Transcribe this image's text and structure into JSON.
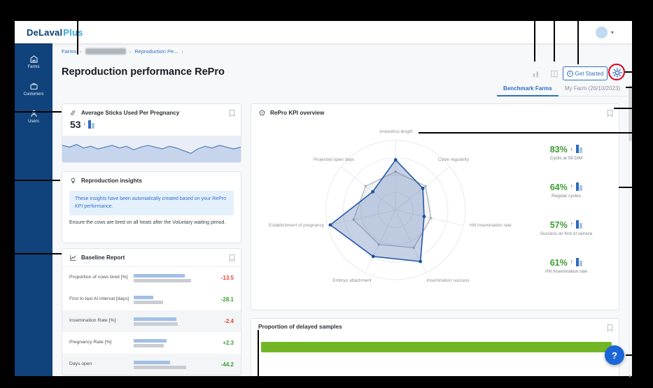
{
  "header": {
    "logo_primary": "DeLaval",
    "logo_secondary": "Plus"
  },
  "sidebar": {
    "items": [
      {
        "label": "Farms"
      },
      {
        "label": "Customers"
      },
      {
        "label": "Users"
      }
    ]
  },
  "breadcrumb": {
    "farms": "Farms",
    "current": "Reproduction Pe...",
    "separator": "›"
  },
  "page": {
    "title": "Reproduction performance RePro",
    "get_started_label": "Get Started",
    "tabs": [
      {
        "label": "Benchmark Farms",
        "active": true
      },
      {
        "label": "My Farm (26/10/2023)",
        "active": false
      }
    ]
  },
  "cards": {
    "avg_sticks": {
      "title": "Average Sticks Used Per Pregnancy",
      "value": "53",
      "trend_arrow": "↓",
      "sparkline": [
        11,
        13,
        10,
        14,
        12,
        15,
        13,
        11,
        14,
        12,
        16,
        13,
        11,
        13,
        15,
        12,
        14,
        17,
        20,
        15,
        12,
        14,
        11,
        13,
        15,
        13
      ]
    },
    "insights": {
      "title": "Reproduction insights",
      "info_text": "These insights have been automatically created based on your RePro KPI performance.",
      "body_text": "Ensure the cows are bred on all heats after the Voluntary waiting period."
    },
    "baseline": {
      "title": "Baseline Report",
      "rows": [
        {
          "label": "Proportion of cows bred [%]",
          "value": "-13.5",
          "direction": "negative",
          "farm_bar": 66,
          "benchmark_bar": 74
        },
        {
          "label": "First to last AI interval [days]",
          "value": "-28.1",
          "direction": "positive",
          "farm_bar": 25,
          "benchmark_bar": 38
        },
        {
          "label": "Insemination Rate [%]",
          "value": "-2.4",
          "direction": "negative",
          "farm_bar": 55,
          "benchmark_bar": 57
        },
        {
          "label": "Pregnancy Rate [%]",
          "value": "+2.3",
          "direction": "positive",
          "farm_bar": 42,
          "benchmark_bar": 39
        },
        {
          "label": "Days open",
          "value": "-44.2",
          "direction": "positive",
          "farm_bar": 47,
          "benchmark_bar": 68
        }
      ]
    },
    "kpi_overview": {
      "title": "RePro KPI overview",
      "radar": {
        "type": "radar",
        "axes": [
          "Anoestrus length",
          "Cycle regularity",
          "HN insemination rate",
          "Insemination success",
          "Embryo attachment",
          "Establishment of pregnancy",
          "Projected open days"
        ],
        "series": [
          {
            "name": "benchmark",
            "values": [
              0.55,
              0.55,
              0.52,
              0.6,
              0.55,
              0.62,
              0.55
            ]
          },
          {
            "name": "farm",
            "values": [
              0.72,
              0.5,
              0.42,
              0.82,
              0.74,
              0.96,
              0.42
            ]
          }
        ]
      },
      "kpis": [
        {
          "value": "83%",
          "trend_arrow": "↓",
          "label": "Cyclic at 59 DIM"
        },
        {
          "value": "64%",
          "trend_arrow": "↑",
          "label": "Regular cycles"
        },
        {
          "value": "57%",
          "trend_arrow": "↑",
          "label": "Success on first AI service"
        },
        {
          "value": "61%",
          "trend_arrow": "↑",
          "label": "HN Insemination rate"
        }
      ]
    },
    "delayed_samples": {
      "title": "Proportion of delayed samples",
      "bar_pct": 100
    }
  },
  "help": {
    "label": "?"
  },
  "colors": {
    "accent_blue": "#2F6EBF",
    "sidebar_blue": "#10437C",
    "positive_green": "#3E9B33",
    "negative_red": "#E2453C",
    "progress_green": "#72B626",
    "annotation_red": "#D6001C"
  }
}
